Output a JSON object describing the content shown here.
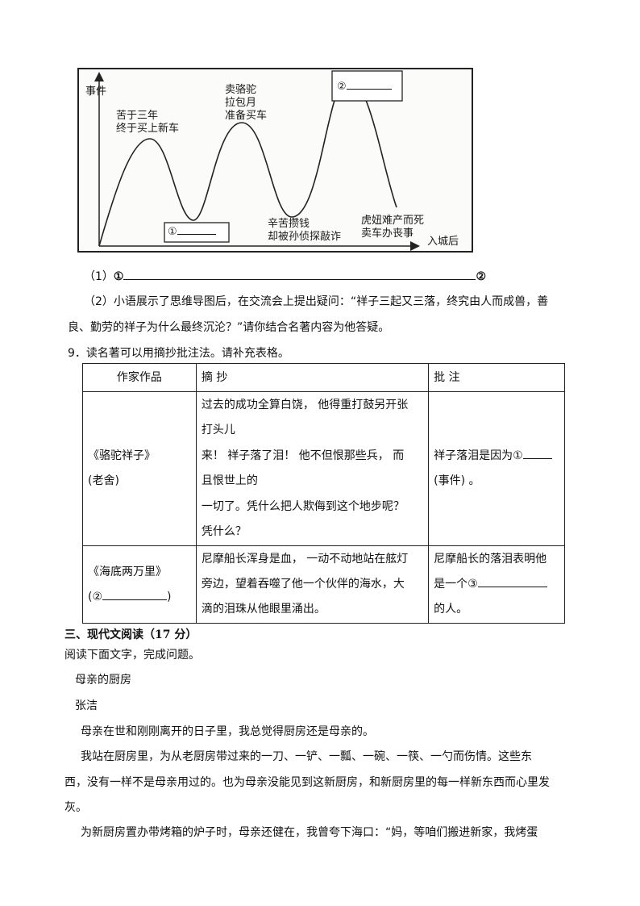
{
  "figure": {
    "y_axis_label": "事件",
    "x_axis_label": "入城后",
    "events": [
      {
        "lines": [
          "苦于三年",
          "终于买上新车"
        ]
      },
      {
        "lines": [
          "①"
        ],
        "blank": true
      },
      {
        "lines": [
          "卖骆驼",
          "拉包月",
          "准备买车"
        ]
      },
      {
        "lines": [
          "辛苦攒钱",
          "却被孙侦探敲诈"
        ]
      },
      {
        "lines": [
          "②"
        ],
        "blank": true
      },
      {
        "lines": [
          "虎妞难产而死",
          "卖车办丧事"
        ]
      }
    ]
  },
  "q8": {
    "part1_prefix": "（1）",
    "part1_mark1": "①",
    "part1_mark2": "②",
    "part2_line1": "（2）小语展示了思维导图后，在交流会上提出疑问：“祥子三起又三落，终究由人而成兽，善",
    "part2_line2": "良、勤劳的祥子为什么最终沉沦？”请你结合名著内容为他答疑。"
  },
  "q9": {
    "title": "9．读名著可以用摘抄批注法。请补充表格。",
    "headers": [
      "作家作品",
      "摘 抄",
      "批 注"
    ],
    "rows": [
      {
        "work": [
          "《骆驼祥子》",
          "(老舍)"
        ],
        "excerpt": [
          "过去的成功全算白饶， 他得重打鼓另开张",
          "打头儿",
          "来！ 祥子落了泪！ 他不但恨那些兵， 而",
          "且恨世上的",
          "一切了。凭什么把人欺侮到这个地步呢？",
          "凭什么？"
        ],
        "note": [
          "祥子落泪是因为①",
          "(事件) 。"
        ]
      },
      {
        "work": [
          "《海底两万里》",
          "(②",
          ")"
        ],
        "excerpt": [
          "尼摩船长浑身是血， 一动不动地站在舷灯",
          "旁边，望着吞噬了他一个伙伴的海水，大",
          "滴的泪珠从他眼里涌出。"
        ],
        "note": [
          "尼摩船长的落泪表明他",
          "是一个③",
          "的人。"
        ]
      }
    ]
  },
  "section3": {
    "heading": "三、现代文阅读（17 分）",
    "instruction": "阅读下面文字，完成问题。",
    "article_title": "母亲的厨房",
    "author": "张洁",
    "paragraph_lines": [
      "母亲在世和刚刚离开的日子里，我总觉得厨房还是母亲的。",
      "我站在厨房里，为从老厨房带过来的一刀、一铲、一瓢、一碗、一筷、一勺而伤情。这些东",
      "西，没有一样不是母亲用过的。也为母亲没能见到这新厨房，和新厨房里的每一样新东西而心里发",
      "灰。",
      "为新厨房置办带烤箱的炉子时，母亲还健在，我曾夸下海口：“妈，等咱们搬进新家，我烤蛋"
    ]
  }
}
